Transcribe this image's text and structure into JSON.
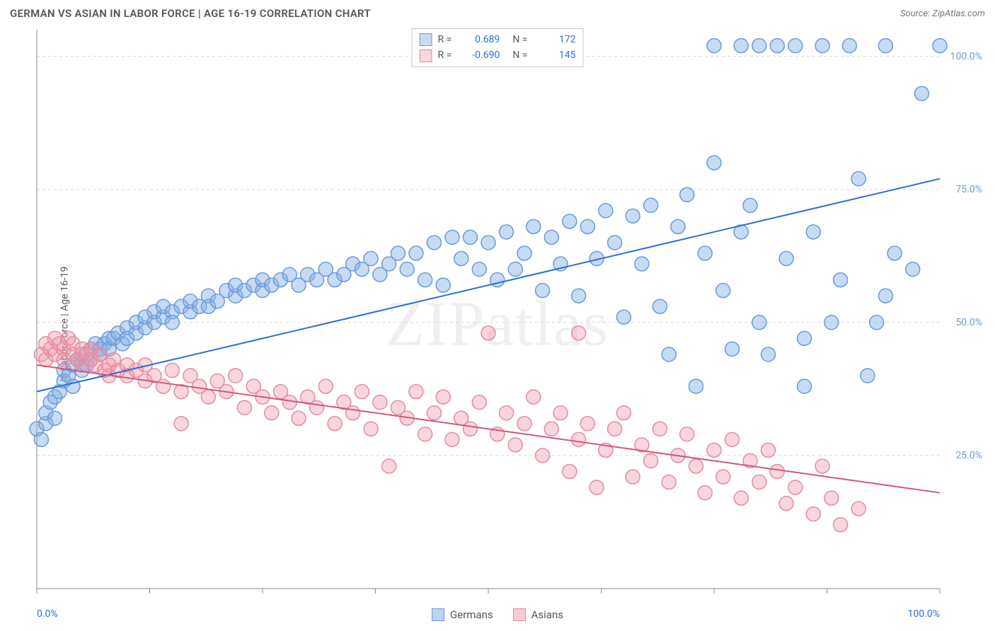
{
  "title": "GERMAN VS ASIAN IN LABOR FORCE | AGE 16-19 CORRELATION CHART",
  "source": "Source: ZipAtlas.com",
  "ylabel": "In Labor Force | Age 16-19",
  "watermark": "ZIPatlas",
  "chart": {
    "type": "scatter",
    "xlim": [
      0,
      100
    ],
    "ylim": [
      0,
      105
    ],
    "ytick_labels": [
      "25.0%",
      "50.0%",
      "75.0%",
      "100.0%"
    ],
    "ytick_values": [
      25,
      50,
      75,
      100
    ],
    "xtick_labels": [
      "0.0%",
      "100.0%"
    ],
    "xtick_values": [
      0,
      100
    ],
    "x_minor_ticks": [
      0,
      12.5,
      25,
      37.5,
      50,
      62.5,
      75,
      87.5,
      100
    ],
    "grid_color": "#d8d8d8",
    "background_color": "#ffffff",
    "marker_radius": 10,
    "marker_stroke_width": 1.5,
    "line_width": 2,
    "series": [
      {
        "name": "Germans",
        "color_fill": "rgba(130,175,230,0.45)",
        "color_stroke": "#6b9bd6",
        "line_color": "#2a6fd6",
        "R": "0.689",
        "N": "172",
        "trend": {
          "x0": 0,
          "y0": 37,
          "x1": 100,
          "y1": 77
        },
        "points": [
          [
            0,
            30
          ],
          [
            0.5,
            28
          ],
          [
            1,
            31
          ],
          [
            1,
            33
          ],
          [
            1.5,
            35
          ],
          [
            2,
            32
          ],
          [
            2,
            36
          ],
          [
            2.5,
            37
          ],
          [
            3,
            39
          ],
          [
            3,
            41
          ],
          [
            3.5,
            40
          ],
          [
            4,
            42
          ],
          [
            4,
            38
          ],
          [
            4.5,
            43
          ],
          [
            5,
            41
          ],
          [
            5,
            44
          ],
          [
            5.5,
            42
          ],
          [
            6,
            45
          ],
          [
            6,
            43
          ],
          [
            6.5,
            46
          ],
          [
            7,
            45
          ],
          [
            7,
            44
          ],
          [
            7.5,
            46
          ],
          [
            8,
            47
          ],
          [
            8,
            45
          ],
          [
            8.5,
            47
          ],
          [
            9,
            48
          ],
          [
            9.5,
            46
          ],
          [
            10,
            49
          ],
          [
            10,
            47
          ],
          [
            11,
            48
          ],
          [
            11,
            50
          ],
          [
            12,
            49
          ],
          [
            12,
            51
          ],
          [
            13,
            50
          ],
          [
            13,
            52
          ],
          [
            14,
            51
          ],
          [
            14,
            53
          ],
          [
            15,
            52
          ],
          [
            15,
            50
          ],
          [
            16,
            53
          ],
          [
            17,
            52
          ],
          [
            17,
            54
          ],
          [
            18,
            53
          ],
          [
            19,
            55
          ],
          [
            19,
            53
          ],
          [
            20,
            54
          ],
          [
            21,
            56
          ],
          [
            22,
            55
          ],
          [
            22,
            57
          ],
          [
            23,
            56
          ],
          [
            24,
            57
          ],
          [
            25,
            56
          ],
          [
            25,
            58
          ],
          [
            26,
            57
          ],
          [
            27,
            58
          ],
          [
            28,
            59
          ],
          [
            29,
            57
          ],
          [
            30,
            59
          ],
          [
            31,
            58
          ],
          [
            32,
            60
          ],
          [
            33,
            58
          ],
          [
            34,
            59
          ],
          [
            35,
            61
          ],
          [
            36,
            60
          ],
          [
            37,
            62
          ],
          [
            38,
            59
          ],
          [
            39,
            61
          ],
          [
            40,
            63
          ],
          [
            41,
            60
          ],
          [
            42,
            63
          ],
          [
            43,
            58
          ],
          [
            44,
            65
          ],
          [
            45,
            57
          ],
          [
            46,
            66
          ],
          [
            47,
            62
          ],
          [
            48,
            66
          ],
          [
            49,
            60
          ],
          [
            50,
            65
          ],
          [
            51,
            58
          ],
          [
            52,
            67
          ],
          [
            53,
            60
          ],
          [
            54,
            63
          ],
          [
            55,
            68
          ],
          [
            56,
            56
          ],
          [
            57,
            66
          ],
          [
            58,
            61
          ],
          [
            59,
            69
          ],
          [
            60,
            55
          ],
          [
            61,
            68
          ],
          [
            62,
            62
          ],
          [
            63,
            71
          ],
          [
            64,
            65
          ],
          [
            65,
            51
          ],
          [
            66,
            70
          ],
          [
            67,
            61
          ],
          [
            68,
            72
          ],
          [
            69,
            53
          ],
          [
            70,
            44
          ],
          [
            71,
            68
          ],
          [
            72,
            74
          ],
          [
            73,
            38
          ],
          [
            74,
            63
          ],
          [
            75,
            80
          ],
          [
            75,
            102
          ],
          [
            76,
            56
          ],
          [
            77,
            45
          ],
          [
            78,
            67
          ],
          [
            78,
            102
          ],
          [
            79,
            72
          ],
          [
            80,
            50
          ],
          [
            80,
            102
          ],
          [
            81,
            44
          ],
          [
            82,
            102
          ],
          [
            83,
            62
          ],
          [
            84,
            102
          ],
          [
            85,
            47
          ],
          [
            85,
            38
          ],
          [
            86,
            67
          ],
          [
            87,
            102
          ],
          [
            88,
            50
          ],
          [
            89,
            58
          ],
          [
            90,
            102
          ],
          [
            91,
            77
          ],
          [
            92,
            40
          ],
          [
            93,
            50
          ],
          [
            94,
            55
          ],
          [
            94,
            102
          ],
          [
            95,
            63
          ],
          [
            97,
            60
          ],
          [
            98,
            93
          ],
          [
            100,
            102
          ]
        ]
      },
      {
        "name": "Asians",
        "color_fill": "rgba(240,150,170,0.40)",
        "color_stroke": "#e38ca0",
        "line_color": "#d6557a",
        "R": "-0.690",
        "N": "145",
        "trend": {
          "x0": 0,
          "y0": 42,
          "x1": 100,
          "y1": 18
        },
        "points": [
          [
            0.5,
            44
          ],
          [
            1,
            46
          ],
          [
            1,
            43
          ],
          [
            1.5,
            45
          ],
          [
            2,
            47
          ],
          [
            2,
            44
          ],
          [
            2.5,
            46
          ],
          [
            3,
            45
          ],
          [
            3,
            43
          ],
          [
            3.5,
            47
          ],
          [
            4,
            44
          ],
          [
            4,
            46
          ],
          [
            4.5,
            43
          ],
          [
            5,
            45
          ],
          [
            5,
            42
          ],
          [
            5.5,
            44
          ],
          [
            6,
            43
          ],
          [
            6,
            45
          ],
          [
            6.5,
            42
          ],
          [
            7,
            44
          ],
          [
            7.5,
            41
          ],
          [
            8,
            42
          ],
          [
            8,
            40
          ],
          [
            8.5,
            43
          ],
          [
            9,
            41
          ],
          [
            10,
            42
          ],
          [
            10,
            40
          ],
          [
            11,
            41
          ],
          [
            12,
            39
          ],
          [
            12,
            42
          ],
          [
            13,
            40
          ],
          [
            14,
            38
          ],
          [
            15,
            41
          ],
          [
            16,
            37
          ],
          [
            16,
            31
          ],
          [
            17,
            40
          ],
          [
            18,
            38
          ],
          [
            19,
            36
          ],
          [
            20,
            39
          ],
          [
            21,
            37
          ],
          [
            22,
            40
          ],
          [
            23,
            34
          ],
          [
            24,
            38
          ],
          [
            25,
            36
          ],
          [
            26,
            33
          ],
          [
            27,
            37
          ],
          [
            28,
            35
          ],
          [
            29,
            32
          ],
          [
            30,
            36
          ],
          [
            31,
            34
          ],
          [
            32,
            38
          ],
          [
            33,
            31
          ],
          [
            34,
            35
          ],
          [
            35,
            33
          ],
          [
            36,
            37
          ],
          [
            37,
            30
          ],
          [
            38,
            35
          ],
          [
            39,
            23
          ],
          [
            40,
            34
          ],
          [
            41,
            32
          ],
          [
            42,
            37
          ],
          [
            43,
            29
          ],
          [
            44,
            33
          ],
          [
            45,
            36
          ],
          [
            46,
            28
          ],
          [
            47,
            32
          ],
          [
            48,
            30
          ],
          [
            49,
            35
          ],
          [
            50,
            48
          ],
          [
            51,
            29
          ],
          [
            52,
            33
          ],
          [
            53,
            27
          ],
          [
            54,
            31
          ],
          [
            55,
            36
          ],
          [
            56,
            25
          ],
          [
            57,
            30
          ],
          [
            58,
            33
          ],
          [
            59,
            22
          ],
          [
            60,
            28
          ],
          [
            60,
            48
          ],
          [
            61,
            31
          ],
          [
            62,
            19
          ],
          [
            63,
            26
          ],
          [
            64,
            30
          ],
          [
            65,
            33
          ],
          [
            66,
            21
          ],
          [
            67,
            27
          ],
          [
            68,
            24
          ],
          [
            69,
            30
          ],
          [
            70,
            20
          ],
          [
            71,
            25
          ],
          [
            72,
            29
          ],
          [
            73,
            23
          ],
          [
            74,
            18
          ],
          [
            75,
            26
          ],
          [
            76,
            21
          ],
          [
            77,
            28
          ],
          [
            78,
            17
          ],
          [
            79,
            24
          ],
          [
            80,
            20
          ],
          [
            81,
            26
          ],
          [
            82,
            22
          ],
          [
            83,
            16
          ],
          [
            84,
            19
          ],
          [
            86,
            14
          ],
          [
            87,
            23
          ],
          [
            88,
            17
          ],
          [
            89,
            12
          ],
          [
            91,
            15
          ]
        ]
      }
    ]
  },
  "legend_bottom": [
    {
      "label": "Germans",
      "fill": "rgba(130,175,230,0.55)",
      "stroke": "#6b9bd6"
    },
    {
      "label": "Asians",
      "fill": "rgba(240,150,170,0.50)",
      "stroke": "#e38ca0"
    }
  ]
}
